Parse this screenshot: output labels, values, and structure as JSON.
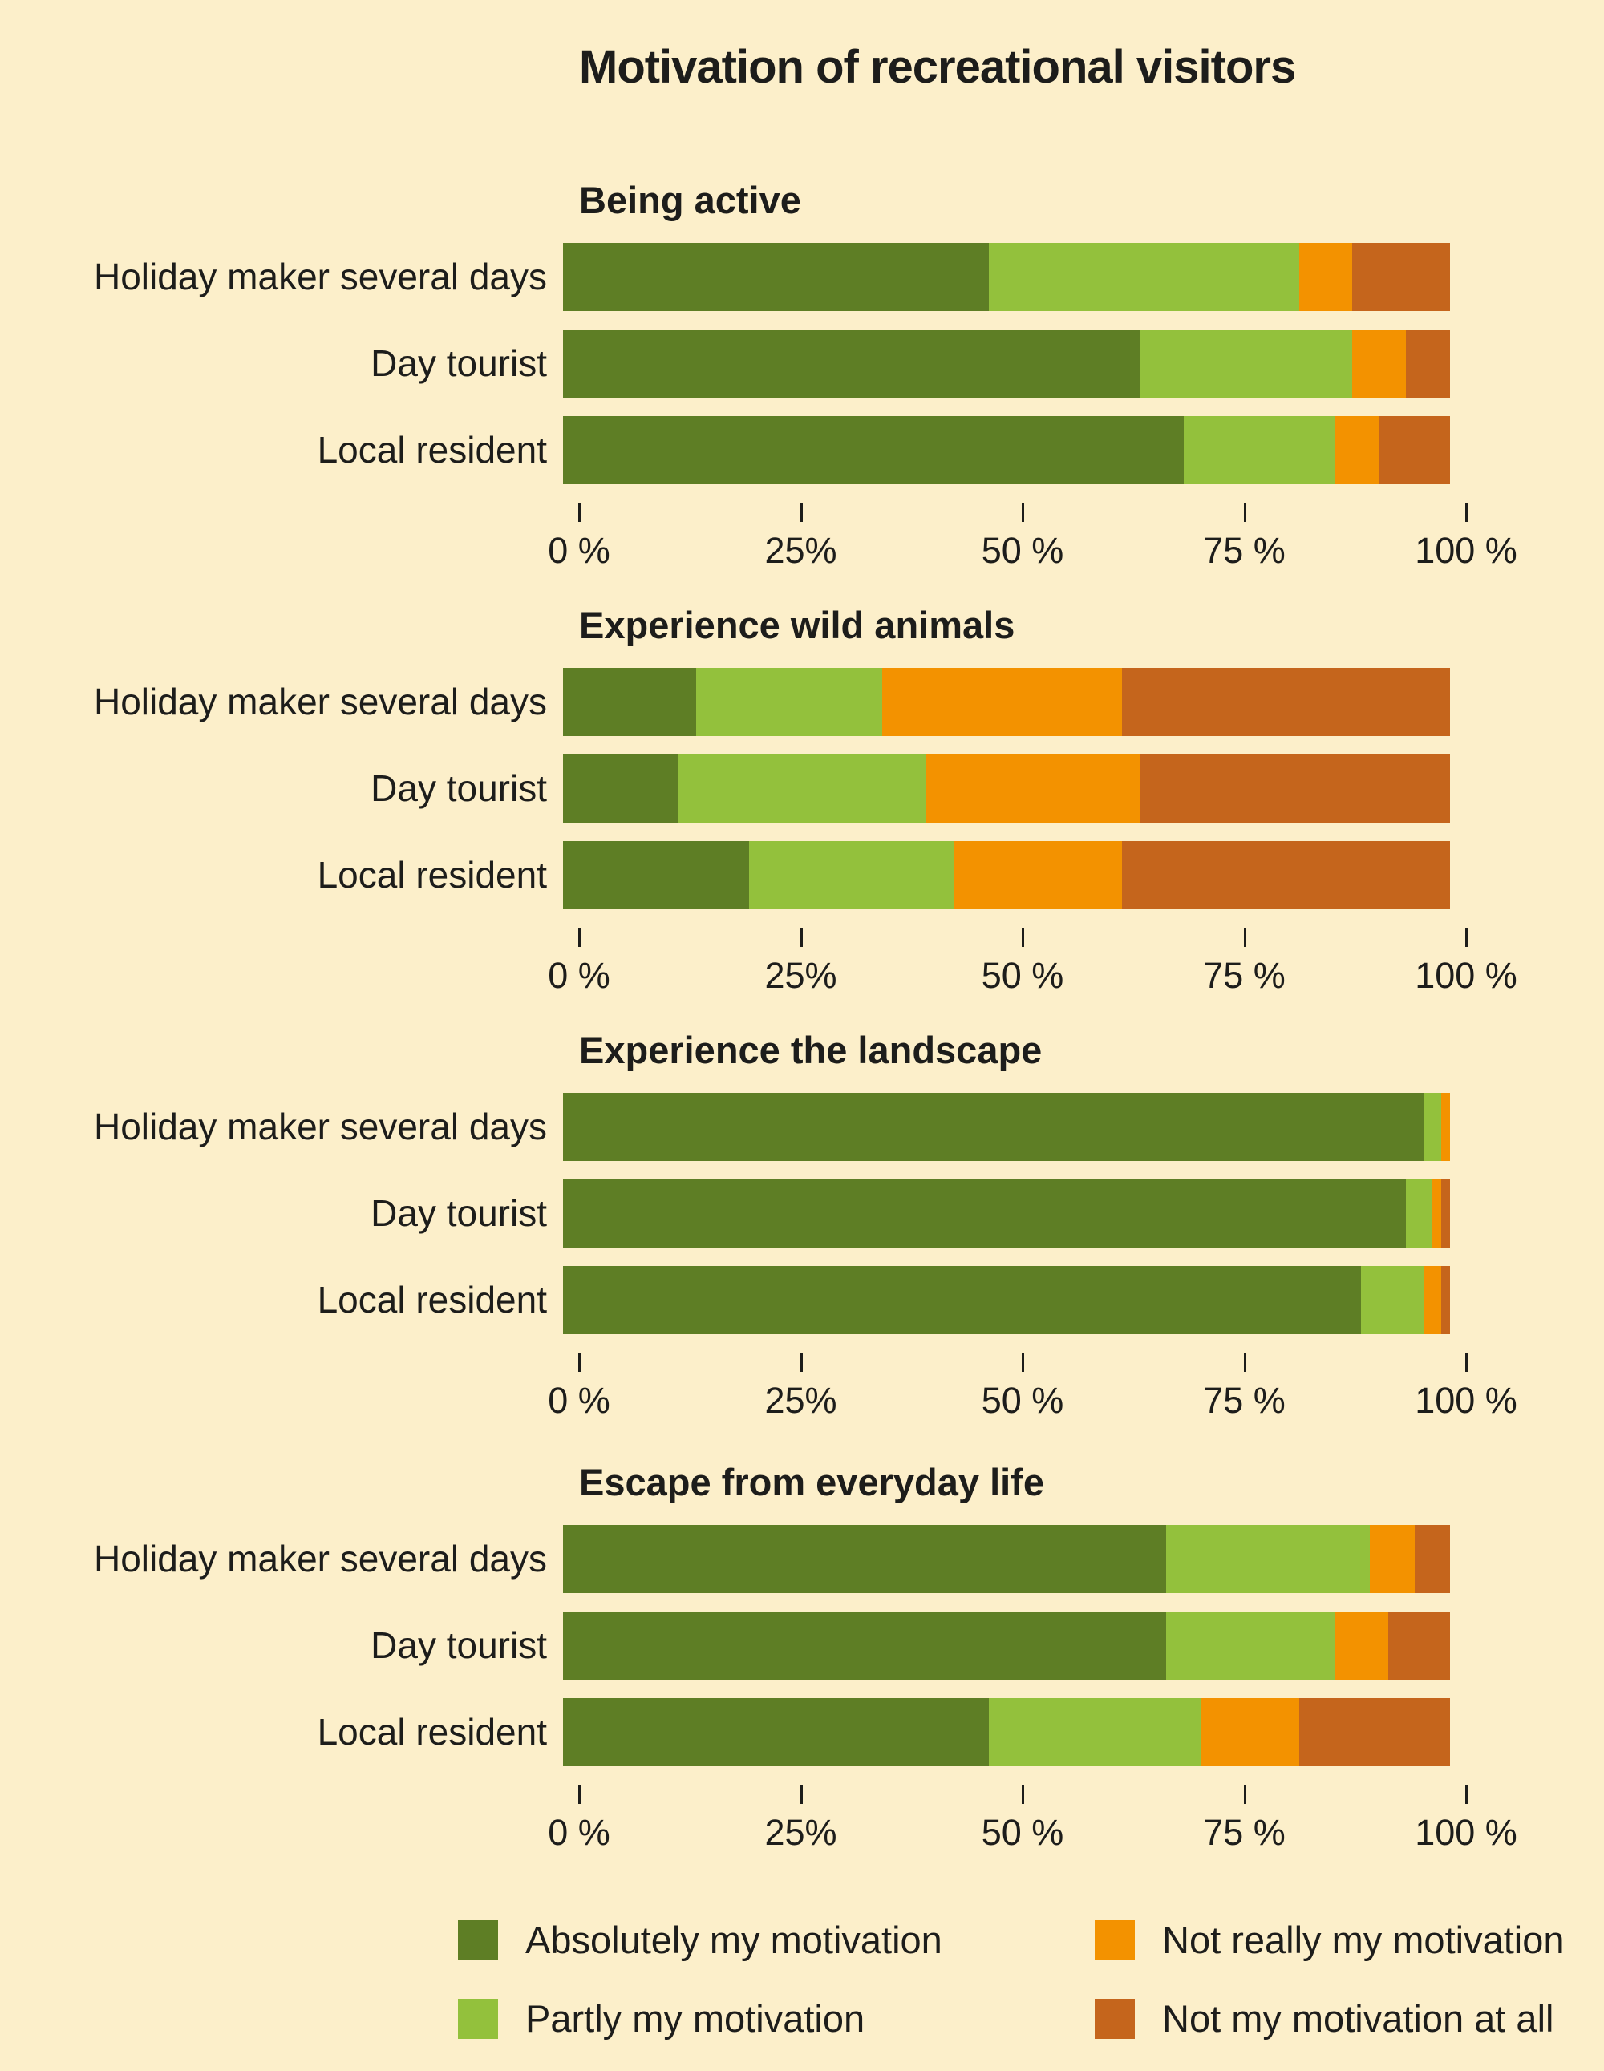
{
  "title": "Motivation of recreational visitors",
  "colors": {
    "background": "#fcefca",
    "text": "#1d1d1b",
    "absolutely": "#5e7e25",
    "partly": "#93c13c",
    "not_really": "#f39200",
    "not_at_all": "#c5651c"
  },
  "axis": {
    "tick_labels": [
      "0 %",
      "25%",
      "50 %",
      "75 %",
      "100 %"
    ],
    "tick_positions": [
      0,
      25,
      50,
      75,
      100
    ]
  },
  "legend": [
    {
      "label": "Absolutely my motivation",
      "color": "#5e7e25"
    },
    {
      "label": "Not really my motivation",
      "color": "#f39200"
    },
    {
      "label": "Partly my motivation",
      "color": "#93c13c"
    },
    {
      "label": "Not my motivation at all",
      "color": "#c5651c"
    }
  ],
  "chart_data": [
    {
      "type": "bar",
      "orientation": "horizontal-stacked",
      "title": "Being active",
      "categories": [
        "Holiday maker several days",
        "Day tourist",
        "Local resident"
      ],
      "series": [
        {
          "name": "Absolutely my motivation",
          "color": "#5e7e25",
          "values": [
            48,
            65,
            70
          ]
        },
        {
          "name": "Partly my motivation",
          "color": "#93c13c",
          "values": [
            35,
            24,
            17
          ]
        },
        {
          "name": "Not really my motivation",
          "color": "#f39200",
          "values": [
            6,
            6,
            5
          ]
        },
        {
          "name": "Not my motivation at all",
          "color": "#c5651c",
          "values": [
            11,
            5,
            8
          ]
        }
      ],
      "xlim": [
        0,
        100
      ],
      "unit": "%",
      "grid": false,
      "legend_position": "bottom"
    },
    {
      "type": "bar",
      "orientation": "horizontal-stacked",
      "title": "Experience wild animals",
      "categories": [
        "Holiday maker several days",
        "Day tourist",
        "Local resident"
      ],
      "series": [
        {
          "name": "Absolutely my motivation",
          "color": "#5e7e25",
          "values": [
            15,
            13,
            21
          ]
        },
        {
          "name": "Partly my motivation",
          "color": "#93c13c",
          "values": [
            21,
            28,
            23
          ]
        },
        {
          "name": "Not really my motivation",
          "color": "#f39200",
          "values": [
            27,
            24,
            19
          ]
        },
        {
          "name": "Not my motivation at all",
          "color": "#c5651c",
          "values": [
            37,
            35,
            37
          ]
        }
      ],
      "xlim": [
        0,
        100
      ],
      "unit": "%",
      "grid": false,
      "legend_position": "bottom"
    },
    {
      "type": "bar",
      "orientation": "horizontal-stacked",
      "title": "Experience the landscape",
      "categories": [
        "Holiday maker several days",
        "Day tourist",
        "Local resident"
      ],
      "series": [
        {
          "name": "Absolutely my motivation",
          "color": "#5e7e25",
          "values": [
            97,
            95,
            90
          ]
        },
        {
          "name": "Partly my motivation",
          "color": "#93c13c",
          "values": [
            2,
            3,
            7
          ]
        },
        {
          "name": "Not really my motivation",
          "color": "#f39200",
          "values": [
            1,
            1,
            2
          ]
        },
        {
          "name": "Not my motivation at all",
          "color": "#c5651c",
          "values": [
            0,
            1,
            1
          ]
        }
      ],
      "xlim": [
        0,
        100
      ],
      "unit": "%",
      "grid": false,
      "legend_position": "bottom"
    },
    {
      "type": "bar",
      "orientation": "horizontal-stacked",
      "title": "Escape from everyday life",
      "categories": [
        "Holiday maker several days",
        "Day tourist",
        "Local resident"
      ],
      "series": [
        {
          "name": "Absolutely my motivation",
          "color": "#5e7e25",
          "values": [
            68,
            68,
            48
          ]
        },
        {
          "name": "Partly my motivation",
          "color": "#93c13c",
          "values": [
            23,
            19,
            24
          ]
        },
        {
          "name": "Not really my motivation",
          "color": "#f39200",
          "values": [
            5,
            6,
            11
          ]
        },
        {
          "name": "Not my motivation at all",
          "color": "#c5651c",
          "values": [
            4,
            7,
            17
          ]
        }
      ],
      "xlim": [
        0,
        100
      ],
      "unit": "%",
      "grid": false,
      "legend_position": "bottom"
    }
  ]
}
